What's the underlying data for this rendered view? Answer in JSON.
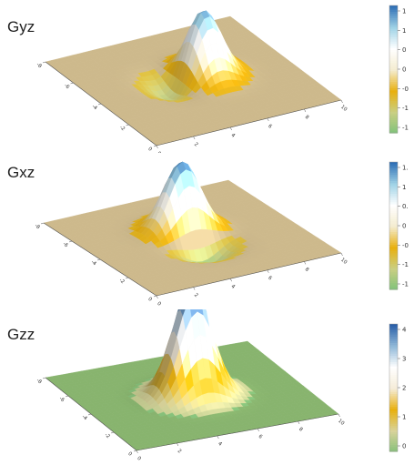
{
  "chart_data": [
    {
      "type": "surface3d",
      "title": "Gyz",
      "xlim": [
        0,
        10
      ],
      "ylim": [
        0,
        10
      ],
      "x_ticks": [
        "0",
        "2",
        "4",
        "6",
        "8",
        "10"
      ],
      "y_ticks": [
        "0",
        "-2",
        "-4",
        "-6",
        "-8"
      ],
      "colorbar_ticks": [
        "1",
        "1",
        "0",
        "0",
        "-0",
        "-1",
        "-1"
      ],
      "surface": {
        "lobes": [
          {
            "x": 5.6,
            "y": 5.3,
            "amplitude": 1.5
          },
          {
            "x": 4.4,
            "y": 5.3,
            "amplitude": -0.6
          }
        ]
      },
      "colormap": [
        "#7fc27a",
        "#c9cf83",
        "#e8b00f",
        "#f4eccf",
        "#ffffff",
        "#9fd2e6",
        "#2f6fb5"
      ]
    },
    {
      "type": "surface3d",
      "title": "Gxz",
      "xlim": [
        0,
        10
      ],
      "ylim": [
        0,
        10
      ],
      "x_ticks": [
        "0",
        "2",
        "4",
        "6",
        "8",
        "10"
      ],
      "y_ticks": [
        "0",
        "-2",
        "-4",
        "-6",
        "-8"
      ],
      "colorbar_ticks": [
        "1.",
        "1",
        "0.",
        "0",
        "-0",
        "-1",
        "-1"
      ],
      "surface": {
        "lobes": [
          {
            "x": 5.0,
            "y": 5.8,
            "amplitude": 1.5
          },
          {
            "x": 5.0,
            "y": 4.2,
            "amplitude": -0.6
          }
        ]
      },
      "colormap": [
        "#7fc27a",
        "#c9cf83",
        "#e8b00f",
        "#f4eccf",
        "#ffffff",
        "#9fd2e6",
        "#2f6fb5"
      ]
    },
    {
      "type": "surface3d",
      "title": "Gzz",
      "xlim": [
        0,
        10
      ],
      "ylim": [
        0,
        10
      ],
      "x_ticks": [
        "0",
        "2",
        "4",
        "6",
        "8",
        "10"
      ],
      "y_ticks": [
        "0",
        "-2",
        "-4",
        "-6",
        "-8"
      ],
      "colorbar_ticks": [
        "4",
        "3",
        "2",
        "1",
        "0"
      ],
      "surface": {
        "lobes": [
          {
            "x": 5.0,
            "y": 5.0,
            "amplitude": 4.3
          }
        ]
      },
      "colormap": [
        "#86c07a",
        "#d8d39a",
        "#e8b00f",
        "#f5ecd8",
        "#ffffff",
        "#8fb8d8",
        "#2a5fa8"
      ]
    }
  ]
}
